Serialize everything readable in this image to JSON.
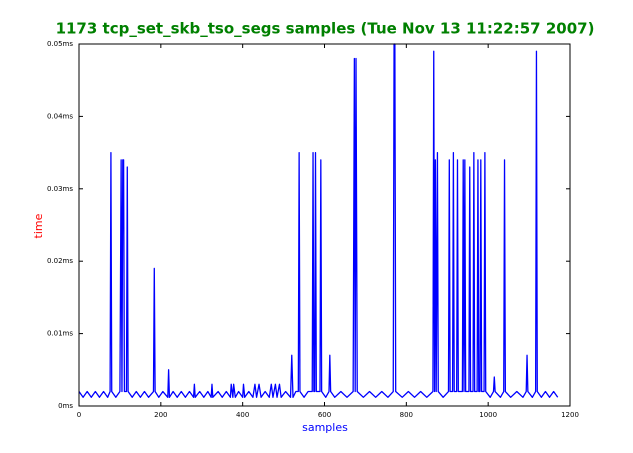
{
  "chart_data": {
    "type": "line",
    "title": "1173 tcp_set_skb_tso_segs samples (Tue Nov 13 11:22:57 2007)",
    "x_label": "samples",
    "y_label": "time",
    "xlim": [
      0,
      1200
    ],
    "xticks": [
      0,
      200,
      400,
      600,
      800,
      1000,
      1200
    ],
    "ylim": [
      0,
      0.05
    ],
    "yticks": [
      {
        "value": 0,
        "label": "0ms"
      },
      {
        "value": 0.01,
        "label": "0.01ms"
      },
      {
        "value": 0.02,
        "label": "0.02ms"
      },
      {
        "value": 0.03,
        "label": "0.03ms"
      },
      {
        "value": 0.04,
        "label": "0.04ms"
      },
      {
        "value": 0.05,
        "label": "0.05ms"
      }
    ],
    "x": [
      0,
      10,
      20,
      30,
      40,
      50,
      60,
      70,
      76,
      78,
      80,
      90,
      100,
      103,
      105,
      107,
      109,
      111,
      116,
      118,
      120,
      130,
      140,
      150,
      160,
      170,
      182,
      184,
      186,
      195,
      205,
      217,
      219,
      221,
      230,
      240,
      250,
      260,
      270,
      280,
      282,
      284,
      295,
      305,
      315,
      323,
      325,
      327,
      340,
      350,
      360,
      370,
      372,
      376,
      378,
      382,
      390,
      400,
      402,
      405,
      415,
      425,
      430,
      434,
      440,
      445,
      455,
      465,
      470,
      474,
      480,
      484,
      490,
      494,
      505,
      517,
      520,
      523,
      530,
      536,
      538,
      540,
      550,
      560,
      570,
      572,
      574,
      576,
      578,
      580,
      589,
      591,
      593,
      603,
      611,
      613,
      615,
      625,
      640,
      655,
      670,
      673,
      675,
      677,
      680,
      695,
      710,
      725,
      740,
      755,
      768,
      770,
      772,
      774,
      790,
      805,
      820,
      835,
      850,
      865,
      867,
      869,
      871,
      873,
      876,
      878,
      890,
      903,
      905,
      907,
      913,
      915,
      917,
      923,
      925,
      927,
      937,
      939,
      941,
      943,
      945,
      953,
      955,
      957,
      963,
      965,
      967,
      973,
      975,
      977,
      980,
      982,
      984,
      990,
      992,
      994,
      1005,
      1013,
      1015,
      1017,
      1030,
      1038,
      1040,
      1042,
      1055,
      1070,
      1085,
      1093,
      1095,
      1097,
      1108,
      1116,
      1118,
      1120,
      1130,
      1140,
      1150,
      1160,
      1170
    ],
    "series": [
      {
        "name": "time",
        "color": "#0000ff",
        "values": [
          0.002,
          0.0012,
          0.002,
          0.0012,
          0.002,
          0.0012,
          0.002,
          0.0012,
          0.002,
          0.035,
          0.002,
          0.0012,
          0.002,
          0.034,
          0.002,
          0.034,
          0.034,
          0.002,
          0.002,
          0.033,
          0.002,
          0.0012,
          0.002,
          0.0012,
          0.002,
          0.0012,
          0.002,
          0.019,
          0.002,
          0.0012,
          0.002,
          0.0012,
          0.005,
          0.0012,
          0.002,
          0.0012,
          0.002,
          0.0012,
          0.002,
          0.0012,
          0.003,
          0.0012,
          0.002,
          0.0012,
          0.002,
          0.0012,
          0.003,
          0.0012,
          0.002,
          0.0012,
          0.002,
          0.0012,
          0.003,
          0.0012,
          0.003,
          0.0012,
          0.002,
          0.0012,
          0.003,
          0.0012,
          0.002,
          0.0012,
          0.003,
          0.0012,
          0.003,
          0.0012,
          0.002,
          0.0012,
          0.003,
          0.0012,
          0.003,
          0.0012,
          0.003,
          0.0012,
          0.002,
          0.0012,
          0.007,
          0.0012,
          0.002,
          0.002,
          0.035,
          0.002,
          0.0012,
          0.002,
          0.002,
          0.035,
          0.002,
          0.002,
          0.035,
          0.002,
          0.002,
          0.034,
          0.002,
          0.0012,
          0.002,
          0.007,
          0.002,
          0.0012,
          0.002,
          0.0012,
          0.002,
          0.048,
          0.002,
          0.048,
          0.002,
          0.0012,
          0.002,
          0.0012,
          0.002,
          0.0012,
          0.002,
          0.05,
          0.05,
          0.002,
          0.0012,
          0.002,
          0.0012,
          0.002,
          0.0012,
          0.002,
          0.049,
          0.002,
          0.034,
          0.002,
          0.035,
          0.002,
          0.0012,
          0.002,
          0.034,
          0.002,
          0.002,
          0.035,
          0.002,
          0.002,
          0.034,
          0.002,
          0.002,
          0.034,
          0.002,
          0.034,
          0.002,
          0.002,
          0.033,
          0.002,
          0.002,
          0.035,
          0.002,
          0.002,
          0.034,
          0.002,
          0.002,
          0.034,
          0.002,
          0.002,
          0.035,
          0.002,
          0.0012,
          0.002,
          0.004,
          0.002,
          0.0012,
          0.002,
          0.034,
          0.002,
          0.0012,
          0.002,
          0.0012,
          0.002,
          0.007,
          0.002,
          0.0012,
          0.002,
          0.049,
          0.002,
          0.0012,
          0.002,
          0.0012,
          0.002,
          0.0012
        ]
      }
    ]
  }
}
